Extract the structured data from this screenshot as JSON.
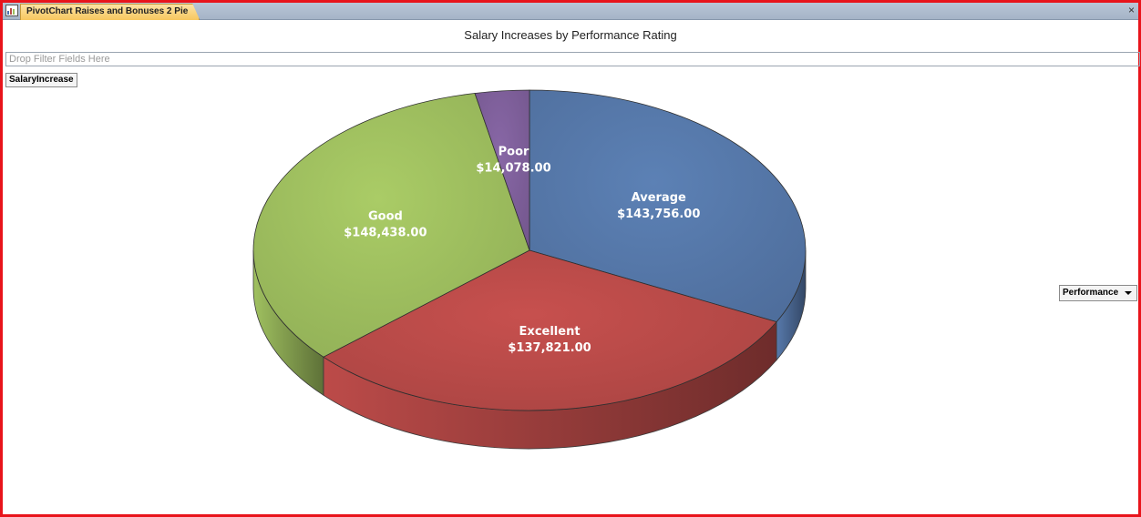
{
  "window": {
    "tab_title": "PivotChart Raises and Bonuses 2 Pie",
    "close_glyph": "×"
  },
  "filter_drop_zone": {
    "placeholder": "Drop Filter Fields Here"
  },
  "data_field_button": {
    "label": "SalaryIncrease"
  },
  "series_field_button": {
    "label": "Performance"
  },
  "chart_data": {
    "type": "pie",
    "title": "Salary Increases by Performance Rating",
    "value_field": "SalaryIncrease",
    "category_field": "Performance",
    "three_d": true,
    "legend": "none",
    "slices": [
      {
        "name": "Average",
        "value": 143756.0,
        "label": "$143,756.00",
        "color": "#5577a8"
      },
      {
        "name": "Excellent",
        "value": 137821.0,
        "label": "$137,821.00",
        "color": "#b84a48"
      },
      {
        "name": "Good",
        "value": 148438.0,
        "label": "$148,438.00",
        "color": "#9dbd5e"
      },
      {
        "name": "Poor",
        "value": 14078.0,
        "label": "$14,078.00",
        "color": "#7e5f9a"
      }
    ]
  }
}
